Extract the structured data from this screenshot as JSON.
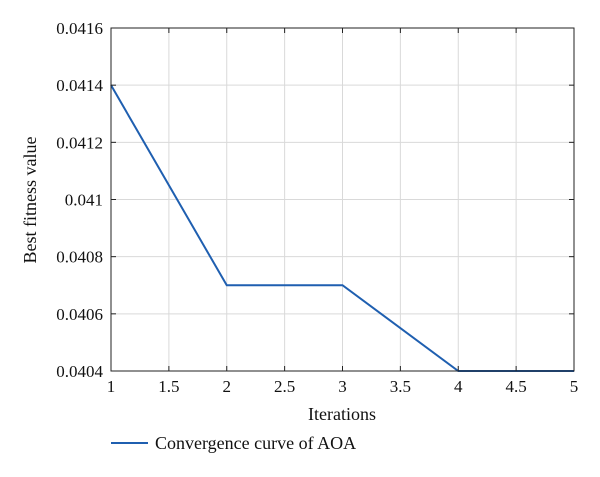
{
  "chart_data": {
    "type": "line",
    "xlabel": "Iterations",
    "ylabel": "Best fitness value",
    "xlim": [
      1,
      5
    ],
    "ylim": [
      0.0404,
      0.0416
    ],
    "x_ticks": [
      1,
      1.5,
      2,
      2.5,
      3,
      3.5,
      4,
      4.5,
      5
    ],
    "x_tick_labels": [
      "1",
      "1.5",
      "2",
      "2.5",
      "3",
      "3.5",
      "4",
      "4.5",
      "5"
    ],
    "y_ticks": [
      0.0404,
      0.0406,
      0.0408,
      0.041,
      0.0412,
      0.0414,
      0.0416
    ],
    "y_tick_labels": [
      "0.0404",
      "0.0406",
      "0.0408",
      "0.041",
      "0.0412",
      "0.0414",
      "0.0416"
    ],
    "grid": true,
    "legend_placement": "bottom-left, below the plot",
    "series": [
      {
        "name": "Convergence curve of AOA",
        "color": "#1f5fb0",
        "x": [
          1,
          2,
          3,
          4,
          5
        ],
        "values": [
          0.0414,
          0.0407,
          0.0407,
          0.0404,
          0.0404
        ]
      }
    ]
  }
}
